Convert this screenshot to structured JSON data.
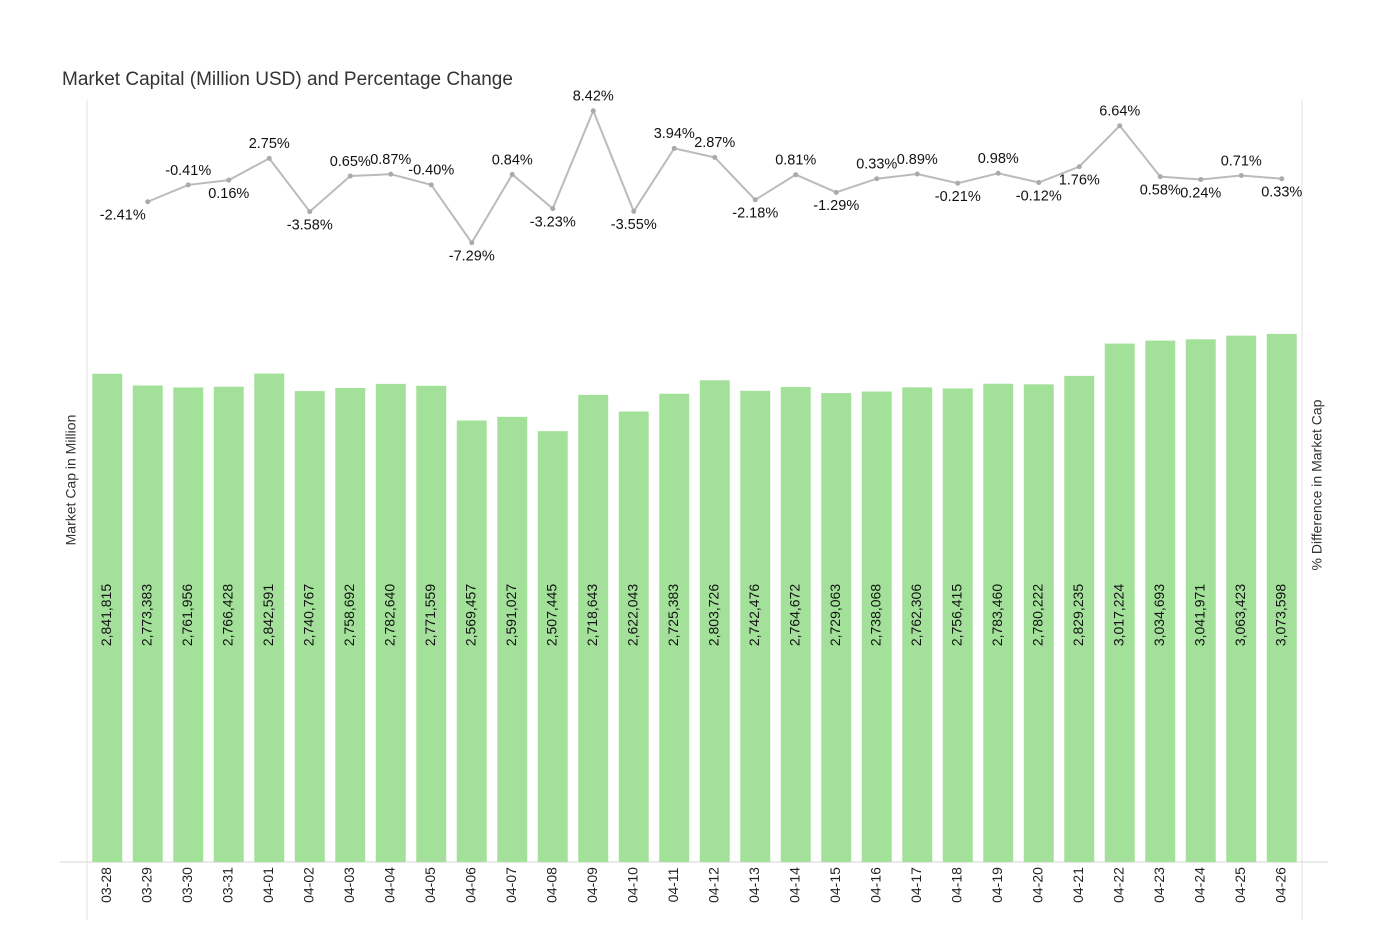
{
  "chart_data": {
    "type": "bar_line",
    "title": "Market Capital (Million USD) and Percentage Change",
    "y_label": "Market Cap in Million",
    "y2_label": "% Difference in Market Cap",
    "categories": [
      "03-28",
      "03-29",
      "03-30",
      "03-31",
      "04-01",
      "04-02",
      "04-03",
      "04-04",
      "04-05",
      "04-06",
      "04-07",
      "04-08",
      "04-09",
      "04-10",
      "04-11",
      "04-12",
      "04-13",
      "04-14",
      "04-15",
      "04-16",
      "04-17",
      "04-18",
      "04-19",
      "04-20",
      "04-21",
      "04-22",
      "04-23",
      "04-24",
      "04-25",
      "04-26"
    ],
    "series": [
      {
        "name": "Market Cap in Million",
        "type": "bar",
        "color": "#a3e09a",
        "values": [
          2841815,
          2773383,
          2761956,
          2766428,
          2842591,
          2740767,
          2758692,
          2782640,
          2771559,
          2569457,
          2591027,
          2507445,
          2718643,
          2622043,
          2725383,
          2803726,
          2742476,
          2764672,
          2729063,
          2738068,
          2762306,
          2756415,
          2783460,
          2780222,
          2829235,
          3017224,
          3034693,
          3041971,
          3063423,
          3073598
        ],
        "value_labels": [
          "2,841,815",
          "2,773,383",
          "2,761,956",
          "2,766,428",
          "2,842,591",
          "2,740,767",
          "2,758,692",
          "2,782,640",
          "2,771,559",
          "2,569,457",
          "2,591,027",
          "2,507,445",
          "2,718,643",
          "2,622,043",
          "2,725,383",
          "2,803,726",
          "2,742,476",
          "2,764,672",
          "2,729,063",
          "2,738,068",
          "2,762,306",
          "2,756,415",
          "2,783,460",
          "2,780,222",
          "2,829,235",
          "3,017,224",
          "3,034,693",
          "3,041,971",
          "3,063,423",
          "3,073,598"
        ]
      },
      {
        "name": "% Difference in Market Cap",
        "type": "line",
        "axis": "y2",
        "color": "#bbbbbb",
        "values": [
          null,
          -2.41,
          -0.41,
          0.16,
          2.75,
          -3.58,
          0.65,
          0.87,
          -0.4,
          -7.29,
          0.84,
          -3.23,
          8.42,
          -3.55,
          3.94,
          2.87,
          -2.18,
          0.81,
          -1.29,
          0.33,
          0.89,
          -0.21,
          0.98,
          -0.12,
          1.76,
          6.64,
          0.58,
          0.24,
          0.71,
          0.33
        ],
        "value_labels": [
          null,
          "-2.41%",
          "-0.41%",
          "0.16%",
          "2.75%",
          "-3.58%",
          "0.65%",
          "0.87%",
          "-0.40%",
          "-7.29%",
          "0.84%",
          "-3.23%",
          "8.42%",
          "-3.55%",
          "3.94%",
          "2.87%",
          "-2.18%",
          "0.81%",
          "-1.29%",
          "0.33%",
          "0.89%",
          "-0.21%",
          "0.98%",
          "-0.12%",
          "1.76%",
          "6.64%",
          "0.58%",
          "0.24%",
          "0.71%",
          "0.33%"
        ]
      }
    ],
    "ylim": [
      0,
      4435000
    ],
    "y2lim": [
      -81,
      9.7
    ]
  }
}
